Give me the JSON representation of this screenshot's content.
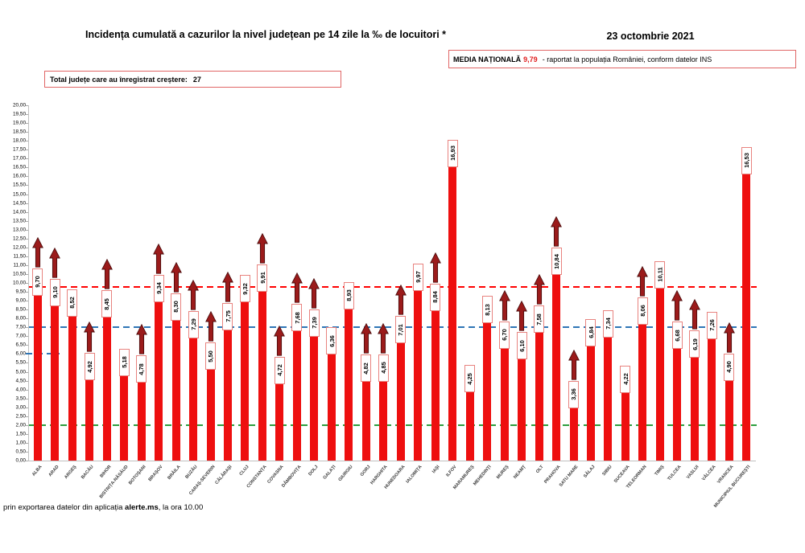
{
  "header": {
    "title": "Incidența cumulată a cazurilor la nivel județean pe 14 zile la ‰ de locuitori *",
    "date": "23 octombrie 2021",
    "national_average_label": "MEDIA NAȚIONALĂ",
    "national_average_value": "9,79",
    "national_average_note": "-  raportat la populația României, conform datelor INS",
    "growth_label": "Total județe care au înregistrat creștere:",
    "growth_count": "27"
  },
  "footer": {
    "pre": "prin exportarea datelor din aplicația ",
    "app": "alerte.ms",
    "post": ", la ora 10.00"
  },
  "chart_data": {
    "type": "bar",
    "title": "Incidența cumulată a cazurilor la nivel județean pe 14 zile la ‰ de locuitori *",
    "categories": [
      "ALBA",
      "ARAD",
      "ARGEȘ",
      "BACĂU",
      "BIHOR",
      "BISTRIȚA-NĂSĂUD",
      "BOTOȘANI",
      "BRAȘOV",
      "BRĂILA",
      "BUZĂU",
      "CARAȘ-SEVERIN",
      "CĂLĂRAȘI",
      "CLUJ",
      "CONSTANȚA",
      "COVASNA",
      "DÂMBOVIȚA",
      "DOLJ",
      "GALAȚI",
      "GIURGIU",
      "GORJ",
      "HARGHITA",
      "HUNEDOARA",
      "IALOMIȚA",
      "IAȘI",
      "ILFOV",
      "MARAMUREȘ",
      "MEHEDINȚI",
      "MUREȘ",
      "NEAMȚ",
      "OLT",
      "PRAHOVA",
      "SATU MARE",
      "SĂLAJ",
      "SIBIU",
      "SUCEAVA",
      "TELEORMAN",
      "TIMIȘ",
      "TULCEA",
      "VASLUI",
      "VÂLCEA",
      "VRANCEA",
      "MUNICIPIUL BUCUREȘTI"
    ],
    "values": [
      9.7,
      9.1,
      8.52,
      4.92,
      8.45,
      5.18,
      4.78,
      9.34,
      8.3,
      7.29,
      5.5,
      7.75,
      9.32,
      9.91,
      4.72,
      7.68,
      7.39,
      6.36,
      8.93,
      4.82,
      4.85,
      7.01,
      9.97,
      8.84,
      16.93,
      4.25,
      8.13,
      6.7,
      6.1,
      7.58,
      10.84,
      3.36,
      6.84,
      7.34,
      4.22,
      8.06,
      10.11,
      6.68,
      6.19,
      7.26,
      4.9,
      16.53
    ],
    "value_labels": [
      "9,70",
      "9,10",
      "8,52",
      "4,92",
      "8,45",
      "5,18",
      "4,78",
      "9,34",
      "8,30",
      "7,29",
      "5,50",
      "7,75",
      "9,32",
      "9,91",
      "4,72",
      "7,68",
      "7,39",
      "6,36",
      "8,93",
      "4,82",
      "4,85",
      "7,01",
      "9,97",
      "8,84",
      "16,93",
      "4,25",
      "8,13",
      "6,70",
      "6,10",
      "7,58",
      "10,84",
      "3,36",
      "6,84",
      "7,34",
      "4,22",
      "8,06",
      "10,11",
      "6,68",
      "6,19",
      "7,26",
      "4,90",
      "16,53"
    ],
    "increase_arrows": [
      true,
      true,
      false,
      true,
      true,
      false,
      true,
      true,
      true,
      true,
      true,
      true,
      false,
      true,
      true,
      true,
      true,
      false,
      false,
      true,
      true,
      true,
      false,
      true,
      false,
      false,
      false,
      true,
      true,
      true,
      true,
      true,
      false,
      false,
      false,
      true,
      false,
      true,
      true,
      false,
      true,
      false
    ],
    "y_ticks": [
      "20,00",
      "19,50",
      "19,00",
      "18,50",
      "18,00",
      "17,50",
      "17,00",
      "16,50",
      "16,00",
      "15,50",
      "15,00",
      "14,50",
      "14,00",
      "13,50",
      "13,00",
      "12,50",
      "12,00",
      "11,50",
      "11,00",
      "10,50",
      "10,00",
      "9,50",
      "9,00",
      "8,50",
      "8,00",
      "7,50",
      "7,00",
      "6,50",
      "6,00",
      "5,50",
      "5,00",
      "4,50",
      "4,00",
      "3,50",
      "3,00",
      "2,50",
      "2,00",
      "1,50",
      "1,00",
      "0,50",
      "0,00"
    ],
    "ylim": [
      0,
      20
    ],
    "y_step": 0.5,
    "bar_color": "#ee0f0f",
    "arrow_color": "#9b1b1b",
    "label_border_color": "#e8837f",
    "reference_lines": [
      {
        "name": "media-nationala",
        "value": 9.79,
        "color": "#ff0000"
      },
      {
        "name": "prag-7-5",
        "value": 7.5,
        "color": "#2e75b6"
      },
      {
        "name": "prag-2",
        "value": 2.0,
        "color": "#2e9e3e"
      }
    ],
    "partial_line": {
      "name": "prag-6-partial",
      "value": 6.0,
      "color": "#2e75b6"
    },
    "legend_position": "none",
    "grid": false
  }
}
